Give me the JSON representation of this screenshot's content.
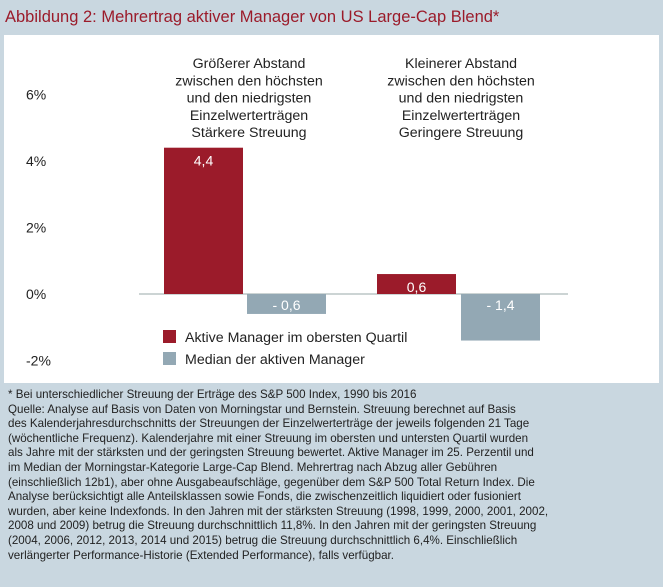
{
  "title": "Abbildung 2: Mehrertrag aktiver Manager von US Large-Cap Blend*",
  "colors": {
    "title": "#9b1b2a",
    "active": "#9b1b2a",
    "median": "#93a8b4",
    "background": "#c9d7e0"
  },
  "chart_data": {
    "type": "bar",
    "categories": [
      [
        "Größerer Abstand",
        "zwischen den höchsten",
        "und den niedrigsten",
        "Einzelwerterträgen",
        "Stärkere Streuung"
      ],
      [
        "Kleinerer Abstand",
        "zwischen den höchsten",
        "und den niedrigsten",
        "Einzelwerterträgen",
        "Geringere Streuung"
      ]
    ],
    "series": [
      {
        "name": "Aktive Manager im obersten Quartil",
        "values": [
          4.4,
          0.6
        ],
        "labels": [
          "4,4",
          "0,6"
        ],
        "color": "#9b1b2a"
      },
      {
        "name": "Median der aktiven Manager",
        "values": [
          -0.6,
          -1.4
        ],
        "labels": [
          "- 0,6",
          "- 1,4"
        ],
        "color": "#93a8b4"
      }
    ],
    "yticks": [
      -2,
      0,
      2,
      4,
      6
    ],
    "ytick_labels": [
      "-2%",
      "0%",
      "2%",
      "4%",
      "6%"
    ],
    "ylim": [
      -2,
      6
    ],
    "legend": "bottom-center",
    "grid": false
  },
  "notes": [
    "* Bei unterschiedlicher Streuung der Erträge des S&P 500 Index, 1990 bis 2016",
    "Quelle: Analyse auf Basis von Daten von Morningstar und Bernstein. Streuung berechnet auf Basis",
    "des Kalenderjahresdurchschnitts der Streuungen der Einzelwerterträge der jeweils folgenden 21 Tage",
    "(wöchentliche Frequenz). Kalenderjahre mit einer Streuung im obersten und untersten Quartil wurden",
    "als Jahre mit der stärksten und der geringsten Streuung bewertet. Aktive Manager im 25. Perzentil und",
    "im Median der Morningstar-Kategorie Large-Cap Blend. Mehrertrag nach Abzug aller Gebühren",
    "(einschließlich 12b1), aber ohne Ausgabeaufschläge, gegenüber dem S&P 500 Total Return Index. Die",
    "Analyse berücksichtigt alle Anteilsklassen sowie Fonds, die zwischenzeitlich liquidiert oder fusioniert",
    "wurden, aber keine Indexfonds. In den Jahren mit der stärksten Streuung (1998, 1999, 2000, 2001, 2002,",
    "2008 und 2009) betrug die Streuung durchschnittlich 11,8%. In den Jahren mit der geringsten Streuung",
    "(2004, 2006, 2012, 2013, 2014 und 2015) betrug die Streuung durchschnittlich 6,4%. Einschließlich",
    "verlängerter Performance-Historie (Extended Performance), falls verfügbar."
  ]
}
